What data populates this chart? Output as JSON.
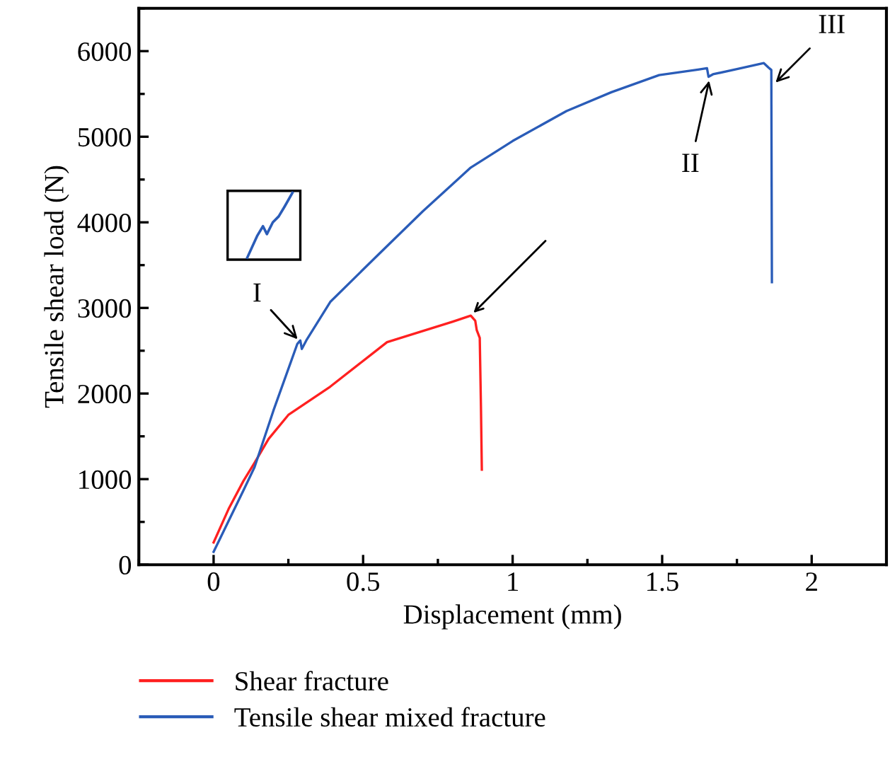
{
  "chart_data": {
    "type": "line",
    "xlabel": "Displacement (mm)",
    "ylabel": "Tensile shear load (N)",
    "xlim": [
      -0.25,
      2.25
    ],
    "xticks": [
      0,
      0.5,
      1,
      1.5,
      2
    ],
    "ylim": [
      0,
      6500
    ],
    "yticks": [
      0,
      1000,
      2000,
      3000,
      4000,
      5000,
      6000
    ],
    "grid": false,
    "legend": "bottom",
    "marker": "none",
    "line_style": "solid",
    "series": [
      {
        "name": "Shear fracture",
        "color": "#ff2020",
        "x": [
          0,
          0.05,
          0.1,
          0.137,
          0.184,
          0.25,
          0.39,
          0.58,
          0.8,
          0.86,
          0.875,
          0.88,
          0.89,
          0.894,
          0.897
        ],
        "values": [
          260,
          650,
          980,
          1190,
          1470,
          1750,
          2080,
          2600,
          2840,
          2910,
          2850,
          2740,
          2650,
          1850,
          1110
        ]
      },
      {
        "name": "Tensile shear mixed fracture",
        "color": "#2a5cb8",
        "x": [
          0,
          0.05,
          0.1,
          0.137,
          0.2,
          0.28,
          0.29,
          0.295,
          0.31,
          0.39,
          0.55,
          0.7,
          0.86,
          1.0,
          1.18,
          1.33,
          1.49,
          1.62,
          1.65,
          1.655,
          1.67,
          1.75,
          1.84,
          1.855,
          1.865,
          1.867
        ],
        "values": [
          150,
          510,
          870,
          1140,
          1800,
          2580,
          2620,
          2520,
          2620,
          3070,
          3620,
          4130,
          4640,
          4950,
          5300,
          5520,
          5720,
          5785,
          5800,
          5700,
          5730,
          5790,
          5860,
          5810,
          5780,
          3300
        ]
      }
    ],
    "annotations": [
      {
        "text": "I",
        "x": 0.29,
        "y": 2600
      },
      {
        "text": "II",
        "x": 1.66,
        "y": 5700
      },
      {
        "text": "III",
        "x": 1.87,
        "y": 5600
      }
    ]
  }
}
